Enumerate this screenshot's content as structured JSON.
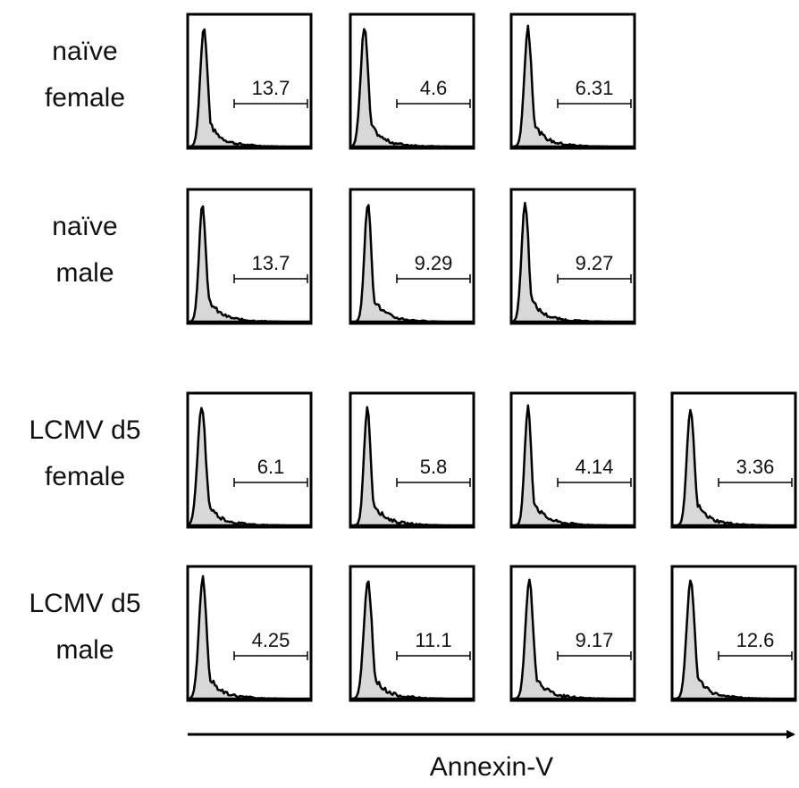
{
  "rows": [
    {
      "label": [
        "naïve",
        "female"
      ],
      "gates": [
        "13.7",
        "4.6",
        "6.31"
      ]
    },
    {
      "label": [
        "naïve",
        "male"
      ],
      "gates": [
        "13.7",
        "9.29",
        "9.27"
      ]
    },
    {
      "label": [
        "LCMV d5",
        "female"
      ],
      "gates": [
        "6.1",
        "5.8",
        "4.14",
        "3.36"
      ]
    },
    {
      "label": [
        "LCMV d5",
        "male"
      ],
      "gates": [
        "4.25",
        "11.1",
        "9.17",
        "12.6"
      ]
    }
  ],
  "axis_label": "Annexin-V"
}
